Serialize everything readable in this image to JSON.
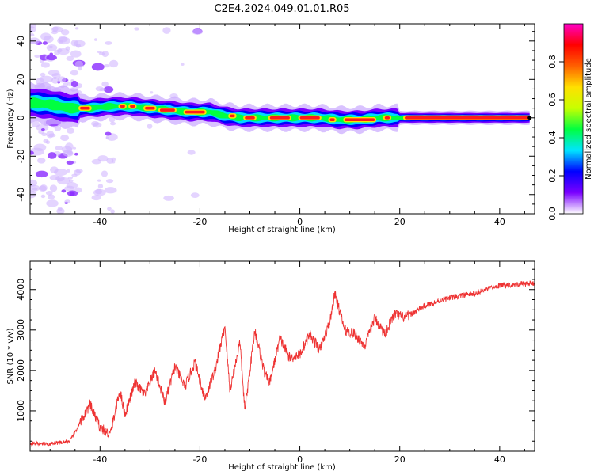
{
  "title": "C2E4.2024.049.01.01.R05",
  "chart_data": [
    {
      "type": "heatmap",
      "xlabel": "Height of straight line (km)",
      "ylabel": "Frequency (Hz)",
      "xlim": [
        -54,
        47
      ],
      "ylim": [
        -50,
        49
      ],
      "xticks": [
        -40,
        -20,
        0,
        20,
        40
      ],
      "yticks": [
        -40,
        -20,
        0,
        20,
        40
      ],
      "ridge": [
        {
          "x": -54,
          "y": 8
        },
        {
          "x": -50,
          "y": 7
        },
        {
          "x": -46,
          "y": 5
        },
        {
          "x": -42,
          "y": 5
        },
        {
          "x": -38,
          "y": 6
        },
        {
          "x": -34,
          "y": 6
        },
        {
          "x": -30,
          "y": 5
        },
        {
          "x": -26,
          "y": 4
        },
        {
          "x": -22,
          "y": 3
        },
        {
          "x": -18,
          "y": 3
        },
        {
          "x": -15,
          "y": 1
        },
        {
          "x": -12,
          "y": 0
        },
        {
          "x": -8,
          "y": 0
        },
        {
          "x": -4,
          "y": 0
        },
        {
          "x": 0,
          "y": 0
        },
        {
          "x": 4,
          "y": 0
        },
        {
          "x": 8,
          "y": -1
        },
        {
          "x": 12,
          "y": -1
        },
        {
          "x": 16,
          "y": 0
        },
        {
          "x": 20,
          "y": 0
        },
        {
          "x": 30,
          "y": 0
        },
        {
          "x": 40,
          "y": 0
        },
        {
          "x": 46,
          "y": 0
        }
      ],
      "hot_segments": [
        {
          "x0": -44,
          "x1": -42,
          "y": 5
        },
        {
          "x0": -36,
          "x1": -35,
          "y": 6
        },
        {
          "x0": -34,
          "x1": -33,
          "y": 6
        },
        {
          "x0": -31,
          "x1": -29,
          "y": 5
        },
        {
          "x0": -28,
          "x1": -25,
          "y": 4
        },
        {
          "x0": -23,
          "x1": -19,
          "y": 3
        },
        {
          "x0": -14,
          "x1": -13,
          "y": 1
        },
        {
          "x0": -11,
          "x1": -9,
          "y": 0
        },
        {
          "x0": -6,
          "x1": -2,
          "y": 0
        },
        {
          "x0": 0,
          "x1": 4,
          "y": 0
        },
        {
          "x0": 6,
          "x1": 7,
          "y": -1
        },
        {
          "x0": 9,
          "x1": 15,
          "y": -1
        },
        {
          "x0": 17,
          "x1": 18,
          "y": 0
        },
        {
          "x0": 21,
          "x1": 46,
          "y": 0
        }
      ],
      "colorbar": {
        "label": "Normalized spectral amplitude",
        "range": [
          0,
          1
        ],
        "ticks": [
          "0.0",
          "0.2",
          "0.4",
          "0.6",
          "0.8"
        ],
        "colormap": "gist_ncar",
        "colors": [
          "#ffffff",
          "#7a00ff",
          "#0000ff",
          "#00e5ff",
          "#00ff40",
          "#c8ff00",
          "#ffe000",
          "#ff6000",
          "#ff0000",
          "#ff00c8"
        ]
      }
    },
    {
      "type": "line",
      "xlabel": "Height of straight line (km)",
      "ylabel": "SNR (10 * v/v)",
      "xlim": [
        -54,
        47
      ],
      "ylim": [
        0,
        4700
      ],
      "xticks": [
        -40,
        -20,
        0,
        20,
        40
      ],
      "yticks": [
        1000,
        2000,
        3000,
        4000
      ],
      "color": "#ee3333",
      "x": [
        -54,
        -50,
        -46,
        -44,
        -42,
        -40,
        -38,
        -36,
        -35,
        -33,
        -31,
        -29,
        -27,
        -25,
        -23,
        -21,
        -19,
        -17,
        -15,
        -14,
        -12,
        -11,
        -9,
        -7,
        -6,
        -4,
        -2,
        0,
        2,
        4,
        6,
        7,
        9,
        11,
        13,
        15,
        17,
        19,
        21,
        25,
        30,
        35,
        40,
        46
      ],
      "y": [
        200,
        180,
        250,
        700,
        1150,
        600,
        400,
        1500,
        900,
        1700,
        1400,
        2000,
        1200,
        2100,
        1600,
        2200,
        1300,
        2000,
        3100,
        1500,
        2700,
        1000,
        3000,
        1900,
        1700,
        2800,
        2300,
        2400,
        2900,
        2500,
        3200,
        3900,
        3000,
        2900,
        2600,
        3300,
        2900,
        3400,
        3300,
        3600,
        3800,
        3900,
        4100,
        4150
      ]
    }
  ]
}
